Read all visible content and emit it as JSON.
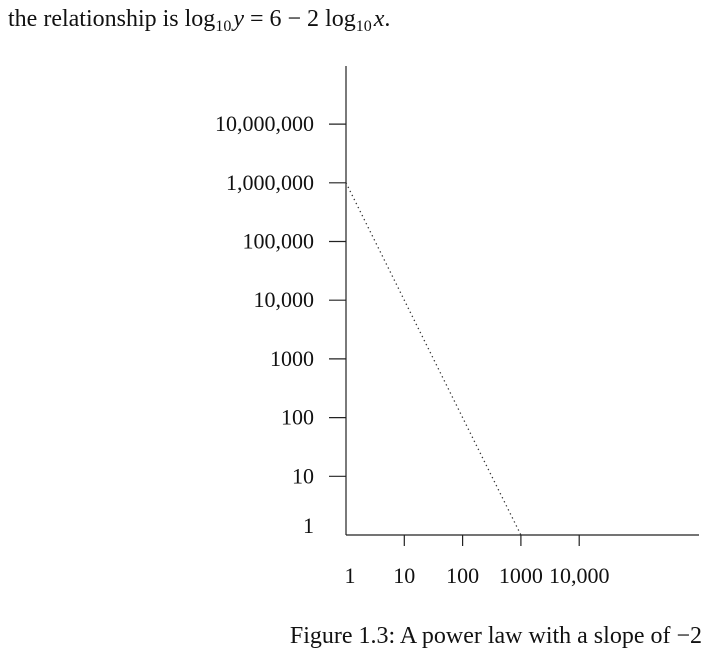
{
  "intro": {
    "prefix": "the relationship is ",
    "log": "log",
    "base": "10",
    "y": "y",
    "equals": " = 6 − 2 ",
    "x": "x",
    "period": "."
  },
  "caption": "Figure 1.3: A power law with a slope of −2",
  "chart_data": {
    "type": "line",
    "title": "",
    "xlabel": "",
    "ylabel": "",
    "x_scale": "log",
    "y_scale": "log",
    "x_ticks": [
      1,
      10,
      100,
      1000,
      10000
    ],
    "x_tick_labels": [
      "1",
      "10",
      "100",
      "1000",
      "10,000"
    ],
    "y_ticks": [
      1,
      10,
      100,
      1000,
      10000,
      100000,
      1000000,
      10000000
    ],
    "y_tick_labels": [
      "1",
      "10",
      "100",
      "1000",
      "10,000",
      "100,000",
      "1,000,000",
      "10,000,000"
    ],
    "series": [
      {
        "style": "dotted",
        "x": [
          1,
          1000
        ],
        "y": [
          1000000,
          1
        ]
      }
    ],
    "grid": false
  }
}
